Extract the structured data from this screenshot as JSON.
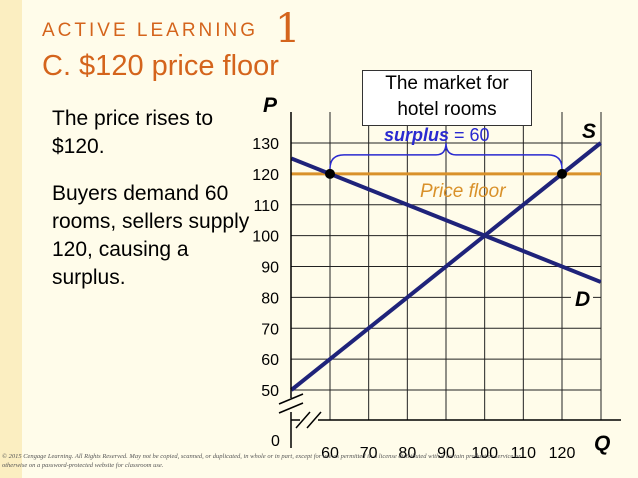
{
  "slide": {
    "kicker": "ACTIVE LEARNING",
    "kicker_number": "1",
    "title": "C. $120 price floor",
    "paragraph1": "The price rises to $120.",
    "paragraph2": "Buyers demand 60 rooms, sellers supply 120, causing a surplus.",
    "callout": "The market for hotel rooms",
    "copyright": "© 2015 Cengage Learning. All Rights Reserved. May not be copied, scanned, or duplicated, in whole or in part, except for use as permitted in a license distributed with a certain product or service or otherwise on a password-protected website for classroom use."
  },
  "chart_data": {
    "type": "line",
    "ylabel": "P",
    "xlabel": "Q",
    "origin_label": "0",
    "x_ticks": [
      "60",
      "70",
      "80",
      "90",
      "100",
      "110",
      "120"
    ],
    "y_ticks": [
      "50",
      "60",
      "70",
      "80",
      "90",
      "100",
      "110",
      "120",
      "130"
    ],
    "xlim": [
      50,
      130
    ],
    "ylim": [
      45,
      135
    ],
    "series": [
      {
        "name": "S",
        "color": "#1f237a",
        "points": [
          [
            50,
            50
          ],
          [
            130,
            130
          ]
        ]
      },
      {
        "name": "D",
        "color": "#1f237a",
        "points": [
          [
            50,
            125
          ],
          [
            130,
            85
          ]
        ]
      }
    ],
    "price_floor": {
      "label": "Price floor",
      "value": 120,
      "color": "#d9912a"
    },
    "surplus": {
      "label": "surplus",
      "equals": "= 60",
      "from": 60,
      "to": 120,
      "label_color": "#2a2ad0",
      "brace_color": "#2a2ad0"
    },
    "marked_points": [
      [
        60,
        120
      ],
      [
        120,
        120
      ]
    ],
    "axis_break": true
  }
}
